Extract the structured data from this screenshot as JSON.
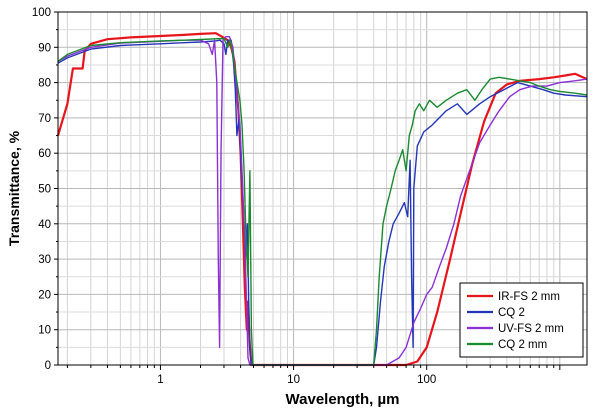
{
  "chart_data": {
    "type": "line",
    "title": "",
    "xlabel": "Wavelength, µm",
    "ylabel": "Transmittance, %",
    "x_scale": "log",
    "xlim": [
      0.17,
      1600
    ],
    "ylim": [
      0,
      100
    ],
    "grid": true,
    "legend_position": "bottom-right",
    "x_tick_labels": [
      {
        "value": 1,
        "label": "1"
      },
      {
        "value": 10,
        "label": "10"
      },
      {
        "value": 100,
        "label": "100"
      }
    ],
    "y_tick_labels": [
      {
        "value": 0,
        "label": "0"
      },
      {
        "value": 10,
        "label": "10"
      },
      {
        "value": 20,
        "label": "20"
      },
      {
        "value": 30,
        "label": "30"
      },
      {
        "value": 40,
        "label": "40"
      },
      {
        "value": 50,
        "label": "50"
      },
      {
        "value": 60,
        "label": "60"
      },
      {
        "value": 70,
        "label": "70"
      },
      {
        "value": 80,
        "label": "80"
      },
      {
        "value": 90,
        "label": "90"
      },
      {
        "value": 100,
        "label": "100"
      }
    ],
    "series": [
      {
        "name": "IR-FS 2 mm",
        "color": "#e8141b",
        "points": [
          [
            0.17,
            65
          ],
          [
            0.2,
            74
          ],
          [
            0.22,
            84
          ],
          [
            0.26,
            84
          ],
          [
            0.27,
            89
          ],
          [
            0.3,
            91
          ],
          [
            0.4,
            92.3
          ],
          [
            0.6,
            92.8
          ],
          [
            1,
            93.2
          ],
          [
            1.5,
            93.5
          ],
          [
            2,
            93.8
          ],
          [
            2.6,
            94
          ],
          [
            2.9,
            93
          ],
          [
            3.2,
            92
          ],
          [
            3.4,
            90
          ],
          [
            3.6,
            86
          ],
          [
            3.7,
            80
          ],
          [
            3.85,
            72
          ],
          [
            4,
            60
          ],
          [
            4.15,
            42
          ],
          [
            4.3,
            22
          ],
          [
            4.45,
            10
          ],
          [
            4.55,
            18
          ],
          [
            4.65,
            8
          ],
          [
            4.75,
            3
          ],
          [
            4.85,
            0
          ],
          [
            10,
            0
          ],
          [
            40,
            0
          ],
          [
            70,
            0
          ],
          [
            85,
            1
          ],
          [
            100,
            5
          ],
          [
            120,
            15
          ],
          [
            150,
            30
          ],
          [
            180,
            43
          ],
          [
            220,
            57
          ],
          [
            270,
            69
          ],
          [
            330,
            77
          ],
          [
            400,
            79.5
          ],
          [
            500,
            80.5
          ],
          [
            700,
            81
          ],
          [
            900,
            81.5
          ],
          [
            1100,
            82
          ],
          [
            1300,
            82.5
          ],
          [
            1600,
            81
          ]
        ]
      },
      {
        "name": "CQ 2",
        "color": "#2336b9",
        "points": [
          [
            0.17,
            85.5
          ],
          [
            0.2,
            87
          ],
          [
            0.3,
            89.5
          ],
          [
            0.5,
            90.5
          ],
          [
            1,
            91
          ],
          [
            1.5,
            91.3
          ],
          [
            2,
            91.5
          ],
          [
            2.6,
            91.8
          ],
          [
            2.8,
            92
          ],
          [
            3.0,
            91
          ],
          [
            3.1,
            88
          ],
          [
            3.2,
            92
          ],
          [
            3.4,
            92
          ],
          [
            3.55,
            85
          ],
          [
            3.65,
            78
          ],
          [
            3.75,
            65
          ],
          [
            3.9,
            70
          ],
          [
            4.05,
            55
          ],
          [
            4.2,
            45
          ],
          [
            4.35,
            30
          ],
          [
            4.5,
            40
          ],
          [
            4.6,
            18
          ],
          [
            4.7,
            5
          ],
          [
            4.8,
            0
          ],
          [
            20,
            0
          ],
          [
            40,
            0
          ],
          [
            42,
            5
          ],
          [
            45,
            18
          ],
          [
            48,
            28
          ],
          [
            52,
            35
          ],
          [
            56,
            40
          ],
          [
            62,
            43
          ],
          [
            68,
            46
          ],
          [
            72,
            42
          ],
          [
            75,
            58
          ],
          [
            77,
            25
          ],
          [
            79,
            5
          ],
          [
            80,
            50
          ],
          [
            85,
            62
          ],
          [
            95,
            66
          ],
          [
            110,
            68
          ],
          [
            140,
            72
          ],
          [
            170,
            74
          ],
          [
            200,
            71
          ],
          [
            250,
            74
          ],
          [
            300,
            76
          ],
          [
            380,
            78
          ],
          [
            480,
            80
          ],
          [
            600,
            79
          ],
          [
            750,
            78
          ],
          [
            900,
            77
          ],
          [
            1100,
            76.5
          ],
          [
            1600,
            76
          ]
        ]
      },
      {
        "name": "UV-FS 2 mm",
        "color": "#8b2fd6",
        "points": [
          [
            0.17,
            86
          ],
          [
            0.2,
            87.5
          ],
          [
            0.3,
            90
          ],
          [
            0.5,
            91.2
          ],
          [
            1,
            91.7
          ],
          [
            1.5,
            92
          ],
          [
            2,
            92
          ],
          [
            2.3,
            91
          ],
          [
            2.45,
            88
          ],
          [
            2.55,
            92
          ],
          [
            2.65,
            80
          ],
          [
            2.72,
            30
          ],
          [
            2.78,
            5
          ],
          [
            2.85,
            60
          ],
          [
            2.95,
            92
          ],
          [
            3.1,
            93
          ],
          [
            3.3,
            93
          ],
          [
            3.5,
            90
          ],
          [
            3.65,
            82
          ],
          [
            3.8,
            75
          ],
          [
            3.95,
            68
          ],
          [
            4.1,
            55
          ],
          [
            4.3,
            35
          ],
          [
            4.45,
            15
          ],
          [
            4.55,
            2
          ],
          [
            4.7,
            0
          ],
          [
            20,
            0
          ],
          [
            50,
            0
          ],
          [
            62,
            2
          ],
          [
            70,
            5
          ],
          [
            80,
            12
          ],
          [
            90,
            16
          ],
          [
            100,
            20
          ],
          [
            110,
            22
          ],
          [
            125,
            28
          ],
          [
            140,
            33
          ],
          [
            160,
            40
          ],
          [
            180,
            48
          ],
          [
            210,
            55
          ],
          [
            250,
            63
          ],
          [
            300,
            68
          ],
          [
            350,
            72
          ],
          [
            420,
            76
          ],
          [
            500,
            78
          ],
          [
            620,
            79
          ],
          [
            800,
            79
          ],
          [
            1000,
            80
          ],
          [
            1300,
            80.5
          ],
          [
            1600,
            81
          ]
        ]
      },
      {
        "name": "CQ 2 mm",
        "color": "#1a8a2f",
        "points": [
          [
            0.17,
            86
          ],
          [
            0.2,
            88
          ],
          [
            0.3,
            90.5
          ],
          [
            0.5,
            91.3
          ],
          [
            1,
            91.8
          ],
          [
            1.5,
            92
          ],
          [
            2,
            92.2
          ],
          [
            2.6,
            92.4
          ],
          [
            3,
            92.5
          ],
          [
            3.2,
            90
          ],
          [
            3.35,
            92
          ],
          [
            3.5,
            88
          ],
          [
            3.65,
            83
          ],
          [
            3.8,
            79
          ],
          [
            3.95,
            75
          ],
          [
            4.1,
            68
          ],
          [
            4.25,
            55
          ],
          [
            4.4,
            35
          ],
          [
            4.55,
            25
          ],
          [
            4.7,
            55
          ],
          [
            4.82,
            10
          ],
          [
            4.95,
            0
          ],
          [
            20,
            0
          ],
          [
            40,
            0
          ],
          [
            42,
            10
          ],
          [
            44,
            25
          ],
          [
            47,
            40
          ],
          [
            50,
            45
          ],
          [
            54,
            50
          ],
          [
            58,
            55
          ],
          [
            62,
            58
          ],
          [
            66,
            61
          ],
          [
            70,
            55
          ],
          [
            74,
            65
          ],
          [
            78,
            68
          ],
          [
            82,
            72
          ],
          [
            88,
            74
          ],
          [
            95,
            72
          ],
          [
            105,
            75
          ],
          [
            120,
            73
          ],
          [
            140,
            75
          ],
          [
            170,
            77
          ],
          [
            200,
            78
          ],
          [
            230,
            75
          ],
          [
            260,
            78
          ],
          [
            300,
            81
          ],
          [
            350,
            81.5
          ],
          [
            420,
            81
          ],
          [
            500,
            80.5
          ],
          [
            600,
            80
          ],
          [
            700,
            79
          ],
          [
            850,
            78
          ],
          [
            1000,
            77.5
          ],
          [
            1300,
            77
          ],
          [
            1600,
            76.5
          ]
        ]
      }
    ]
  }
}
